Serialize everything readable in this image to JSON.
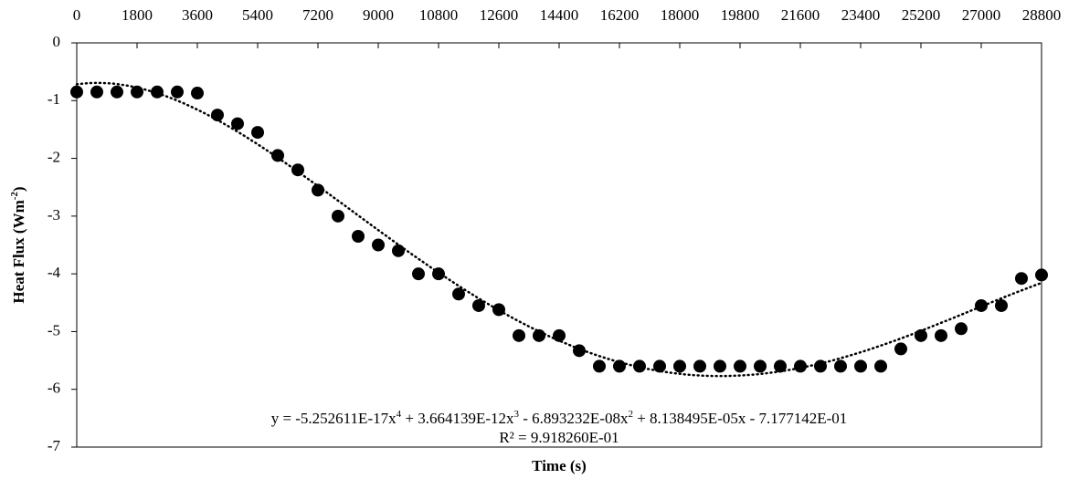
{
  "chart_data": {
    "type": "scatter",
    "x_label": "Time (s)",
    "y_label_parts": [
      "Heat Flux (Wm",
      "-2",
      ")"
    ],
    "xlim": [
      0,
      28800
    ],
    "xticks": [
      0,
      1800,
      3600,
      5400,
      7200,
      9000,
      10800,
      12600,
      14400,
      16200,
      18000,
      19800,
      21600,
      23400,
      25200,
      27000,
      28800
    ],
    "ylim": [
      -7,
      0
    ],
    "yticks": [
      0,
      -1,
      -2,
      -3,
      -4,
      -5,
      -6,
      -7
    ],
    "series": [
      {
        "color": "#000000",
        "x": [
          0,
          600,
          1200,
          1800,
          2400,
          3000,
          3600,
          4200,
          4800,
          5400,
          6000,
          6600,
          7200,
          7800,
          8400,
          9000,
          9600,
          10200,
          10800,
          11400,
          12000,
          12600,
          13200,
          13800,
          14400,
          15000,
          15600,
          16200,
          16800,
          17400,
          18000,
          18600,
          19200,
          19800,
          20400,
          21000,
          21600,
          22200,
          22800,
          23400,
          24000,
          24600,
          25200,
          25800,
          26400,
          27000,
          27600,
          28200,
          28800
        ],
        "values": [
          -0.85,
          -0.85,
          -0.85,
          -0.85,
          -0.85,
          -0.85,
          -0.87,
          -1.25,
          -1.4,
          -1.55,
          -1.95,
          -2.2,
          -2.55,
          -3.0,
          -3.35,
          -3.5,
          -3.6,
          -4.0,
          -4.0,
          -4.35,
          -4.55,
          -4.62,
          -5.07,
          -5.07,
          -5.07,
          -5.33,
          -5.6,
          -5.6,
          -5.6,
          -5.6,
          -5.6,
          -5.6,
          -5.6,
          -5.6,
          -5.6,
          -5.6,
          -5.6,
          -5.6,
          -5.6,
          -5.6,
          -5.6,
          -5.3,
          -5.07,
          -5.07,
          -4.95,
          -4.55,
          -4.55,
          -4.08,
          -4.02
        ]
      }
    ],
    "trendline": {
      "coefficients": [
        -5.252611e-17,
        3.664139e-12,
        -6.893232e-08,
        8.138495e-05,
        -0.7177142
      ],
      "equation_parts": [
        "y = -5.252611E-17x",
        "4",
        " + 3.664139E-12x",
        "3",
        " - 6.893232E-08x",
        "2",
        " + 8.138495E-05x - 7.177142E-01"
      ],
      "r2": "R² = 9.918260E-01"
    }
  }
}
